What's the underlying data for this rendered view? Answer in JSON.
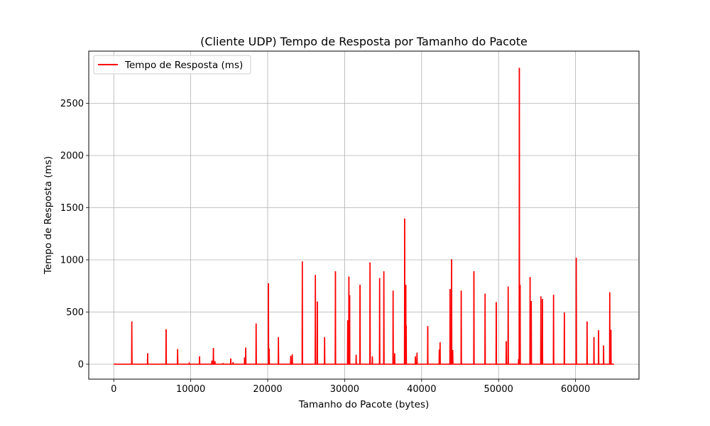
{
  "chart_data": {
    "type": "line",
    "title": "(Cliente UDP) Tempo de Resposta por Tamanho do Pacote",
    "xlabel": "Tamanho do Pacote (bytes)",
    "ylabel": "Tempo de Resposta (ms)",
    "xlim": [
      -3250,
      68250
    ],
    "ylim": [
      -143,
      3000
    ],
    "xticks": [
      0,
      10000,
      20000,
      30000,
      40000,
      50000,
      60000
    ],
    "yticks": [
      0,
      500,
      1000,
      1500,
      2000,
      2500
    ],
    "grid": true,
    "legend_position": "top-left",
    "color": "#ff0000",
    "series": [
      {
        "name": "Tempo de Resposta (ms)",
        "x_range": [
          0,
          65000
        ],
        "baseline": 0,
        "spikes": [
          [
            2350,
            410
          ],
          [
            4400,
            105
          ],
          [
            6800,
            335
          ],
          [
            8300,
            145
          ],
          [
            9800,
            8
          ],
          [
            11150,
            75
          ],
          [
            12750,
            35
          ],
          [
            12950,
            155
          ],
          [
            13150,
            30
          ],
          [
            14200,
            10
          ],
          [
            15200,
            55
          ],
          [
            15500,
            20
          ],
          [
            17000,
            65
          ],
          [
            17150,
            160
          ],
          [
            18500,
            390
          ],
          [
            20100,
            775
          ],
          [
            20200,
            150
          ],
          [
            21400,
            260
          ],
          [
            23000,
            80
          ],
          [
            23200,
            95
          ],
          [
            24500,
            985
          ],
          [
            26200,
            855
          ],
          [
            26450,
            600
          ],
          [
            27400,
            260
          ],
          [
            28800,
            890
          ],
          [
            30400,
            420
          ],
          [
            30550,
            840
          ],
          [
            30650,
            660
          ],
          [
            31500,
            90
          ],
          [
            32000,
            760
          ],
          [
            33300,
            975
          ],
          [
            33600,
            75
          ],
          [
            34550,
            825
          ],
          [
            35100,
            890
          ],
          [
            36300,
            705
          ],
          [
            36500,
            105
          ],
          [
            37800,
            1395
          ],
          [
            37950,
            760
          ],
          [
            38000,
            370
          ],
          [
            39200,
            75
          ],
          [
            39400,
            110
          ],
          [
            40800,
            365
          ],
          [
            42300,
            140
          ],
          [
            42400,
            210
          ],
          [
            43700,
            720
          ],
          [
            43900,
            1005
          ],
          [
            44050,
            135
          ],
          [
            45150,
            705
          ],
          [
            46800,
            890
          ],
          [
            48250,
            675
          ],
          [
            49700,
            595
          ],
          [
            51000,
            220
          ],
          [
            51250,
            745
          ],
          [
            52600,
            50
          ],
          [
            52700,
            2840
          ],
          [
            52800,
            760
          ],
          [
            54100,
            835
          ],
          [
            54250,
            605
          ],
          [
            55500,
            650
          ],
          [
            55700,
            625
          ],
          [
            57150,
            665
          ],
          [
            58550,
            495
          ],
          [
            60100,
            1020
          ],
          [
            61500,
            410
          ],
          [
            62400,
            260
          ],
          [
            63000,
            325
          ],
          [
            63650,
            180
          ],
          [
            64450,
            690
          ],
          [
            64600,
            330
          ]
        ]
      }
    ]
  }
}
